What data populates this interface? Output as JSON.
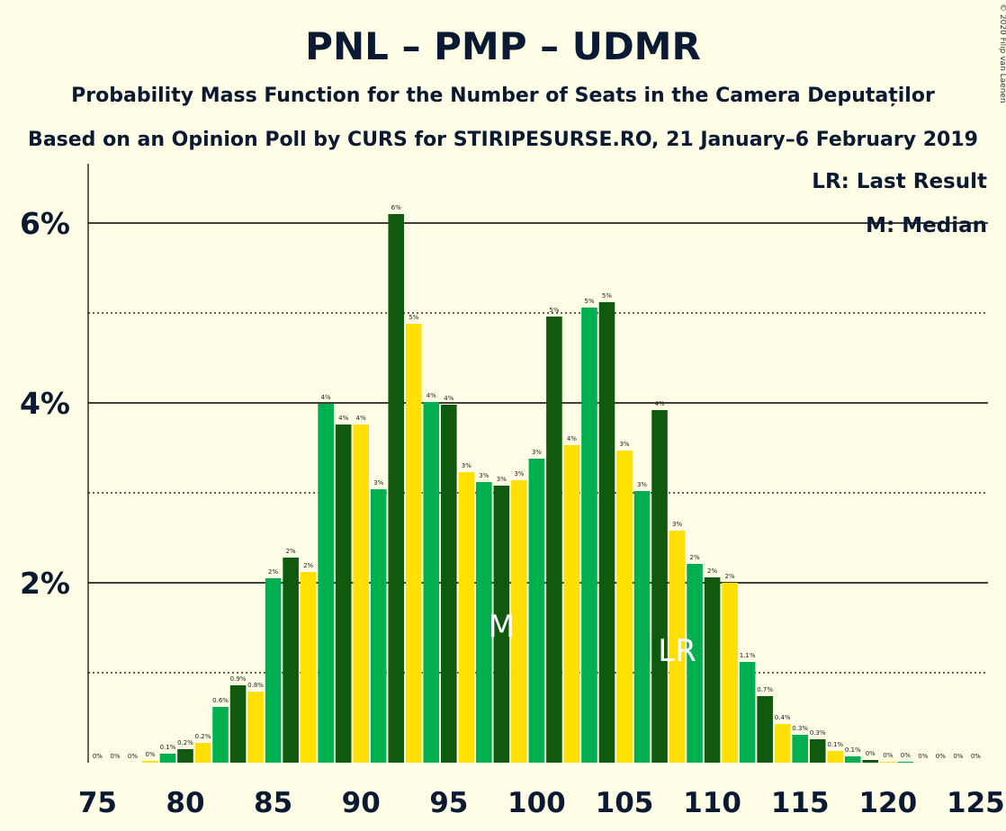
{
  "copyright": "© 2020 Filip van Laenen",
  "chart_data": {
    "type": "bar",
    "title": "PNL – PMP – UDMR",
    "subtitle": "Probability Mass Function for the Number of Seats in the Camera Deputaților",
    "subtitle2": "Based on an Opinion Poll by CURS for STIRIPESURSE.RO, 21 January–6 February 2019",
    "legend": [
      "LR: Last Result",
      "M: Median"
    ],
    "legend_placement": "top-right",
    "x": [
      75,
      76,
      77,
      78,
      79,
      80,
      81,
      82,
      83,
      84,
      85,
      86,
      87,
      88,
      89,
      90,
      91,
      92,
      93,
      94,
      95,
      96,
      97,
      98,
      99,
      100,
      101,
      102,
      103,
      104,
      105,
      106,
      107,
      108,
      109,
      110,
      111,
      112,
      113,
      114,
      115,
      116,
      117,
      118,
      119,
      120,
      121,
      122,
      123,
      124,
      125
    ],
    "values": [
      0,
      0,
      0,
      0.02,
      0.1,
      0.15,
      0.22,
      0.62,
      0.86,
      0.79,
      2.05,
      2.28,
      2.12,
      3.99,
      3.76,
      3.76,
      3.04,
      6.1,
      4.88,
      4.01,
      3.98,
      3.23,
      3.12,
      3.08,
      3.14,
      3.38,
      4.96,
      3.53,
      5.06,
      5.12,
      3.47,
      3.02,
      3.92,
      2.58,
      2.21,
      2.06,
      2.0,
      1.12,
      0.74,
      0.43,
      0.31,
      0.26,
      0.13,
      0.07,
      0.03,
      0.01,
      0.01,
      0,
      0,
      0,
      0
    ],
    "labels": [
      "0%",
      "0%",
      "0%",
      "0%",
      "0.1%",
      "0.2%",
      "0.2%",
      "0.6%",
      "0.9%",
      "0.8%",
      "2%",
      "2%",
      "2%",
      "4%",
      "4%",
      "4%",
      "3%",
      "6%",
      "5%",
      "4%",
      "4%",
      "3%",
      "3%",
      "3%",
      "3%",
      "3%",
      "5%",
      "4%",
      "5%",
      "5%",
      "3%",
      "3%",
      "4%",
      "3%",
      "2%",
      "2%",
      "2%",
      "1.1%",
      "0.7%",
      "0.4%",
      "0.3%",
      "0.3%",
      "0.1%",
      "0.1%",
      "0%",
      "0%",
      "0%",
      "0%",
      "0%",
      "0%",
      "0%"
    ],
    "x_ticks": [
      75,
      80,
      85,
      90,
      95,
      100,
      105,
      110,
      115,
      120,
      125
    ],
    "x_tick_labels": [
      "75",
      "80",
      "85",
      "90",
      "95",
      "100",
      "105",
      "110",
      "115",
      "120",
      "125"
    ],
    "y_ticks": [
      2,
      4,
      6
    ],
    "y_tick_labels": [
      "2%",
      "4%",
      "6%"
    ],
    "ylim": [
      0,
      6.6
    ],
    "median_seat": 98,
    "median_label": "M",
    "last_result_seat": 108,
    "last_result_label": "LR",
    "colors": {
      "green": "#00B050",
      "darkgreen": "#0F5A0F",
      "yellow": "#FFE000",
      "grid": "#000000",
      "background": "#FFFDE6",
      "marker_text": "#FFFFFF"
    }
  }
}
